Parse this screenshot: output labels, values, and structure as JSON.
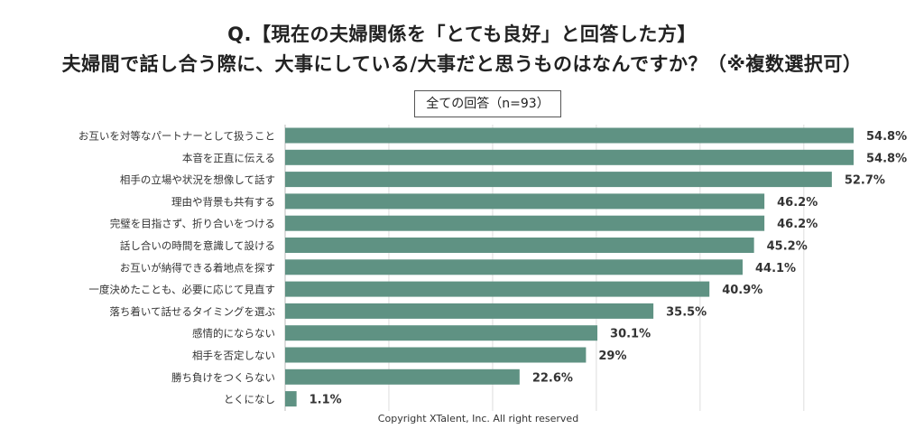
{
  "chart_data": {
    "type": "bar",
    "orientation": "horizontal",
    "title": "Q.【現在の夫婦関係を「とても良好」と回答した方】",
    "subtitle": "夫婦間で話し合う際に、大事にしている/大事だと思うものはなんですか？（※複数選択可）",
    "legend": "全ての回答（n=93）",
    "categories": [
      "お互いを対等なパートナーとして扱うこと",
      "本音を正直に伝える",
      "相手の立場や状況を想像して話す",
      "理由や背景も共有する",
      "完璧を目指さず、折り合いをつける",
      "話し合いの時間を意識して設ける",
      "お互いが納得できる着地点を探す",
      "一度決めたことも、必要に応じて見直す",
      "落ち着いて話せるタイミングを選ぶ",
      "感情的にならない",
      "相手を否定しない",
      "勝ち負けをつくらない",
      "とくになし"
    ],
    "values": [
      54.8,
      54.8,
      52.7,
      46.2,
      46.2,
      45.2,
      44.1,
      40.9,
      35.5,
      30.1,
      29,
      22.6,
      1.1
    ],
    "value_labels": [
      "54.8%",
      "54.8%",
      "52.7%",
      "46.2%",
      "46.2%",
      "45.2%",
      "44.1%",
      "40.9%",
      "35.5%",
      "30.1%",
      "29%",
      "22.6%",
      "1.1%"
    ],
    "xlim": [
      0,
      60
    ],
    "grid": true,
    "grid_step": 10,
    "bar_color": "#5f9283",
    "grid_color": "#dddddd"
  },
  "footer": {
    "copyright": "Copyright XTalent, Inc. All right reserved"
  }
}
